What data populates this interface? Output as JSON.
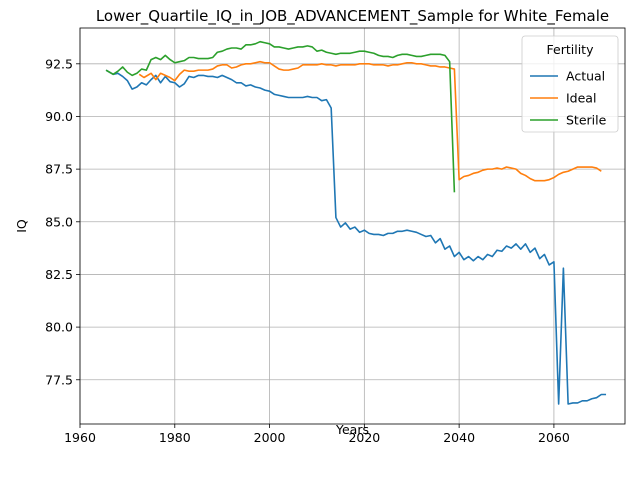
{
  "chart_data": {
    "type": "line",
    "title": "Lower_Quartile_IQ_in_JOB_ADVANCEMENT_Sample for White_Female",
    "xlabel": "Years",
    "ylabel": "IQ",
    "xlim": [
      1960,
      2075
    ],
    "ylim": [
      75.4,
      94.2
    ],
    "xticks": [
      1960,
      1980,
      2000,
      2020,
      2040,
      2060
    ],
    "yticks": [
      77.5,
      80.0,
      82.5,
      85.0,
      87.5,
      90.0,
      92.5
    ],
    "xtick_labels": [
      "1960",
      "1980",
      "2000",
      "2020",
      "2040",
      "2060"
    ],
    "ytick_labels": [
      "77.5",
      "80.0",
      "82.5",
      "85.0",
      "87.5",
      "90.0",
      "92.5"
    ],
    "grid": true,
    "legend": {
      "title": "Fertility",
      "position": "top-right"
    },
    "series": [
      {
        "name": "Actual",
        "color": "#1f77b4",
        "points": [
          [
            1965.5,
            92.2
          ],
          [
            1967,
            92.0
          ],
          [
            1968,
            92.05
          ],
          [
            1969,
            91.9
          ],
          [
            1970,
            91.7
          ],
          [
            1971,
            91.3
          ],
          [
            1972,
            91.4
          ],
          [
            1973,
            91.6
          ],
          [
            1974,
            91.5
          ],
          [
            1975,
            91.75
          ],
          [
            1976,
            91.95
          ],
          [
            1977,
            91.6
          ],
          [
            1978,
            91.9
          ],
          [
            1979,
            91.65
          ],
          [
            1980,
            91.6
          ],
          [
            1981,
            91.4
          ],
          [
            1982,
            91.55
          ],
          [
            1983,
            91.9
          ],
          [
            1984,
            91.85
          ],
          [
            1985,
            91.95
          ],
          [
            1986,
            91.95
          ],
          [
            1987,
            91.9
          ],
          [
            1988,
            91.9
          ],
          [
            1989,
            91.85
          ],
          [
            1990,
            91.95
          ],
          [
            1991,
            91.85
          ],
          [
            1992,
            91.75
          ],
          [
            1993,
            91.6
          ],
          [
            1994,
            91.6
          ],
          [
            1995,
            91.45
          ],
          [
            1996,
            91.5
          ],
          [
            1997,
            91.4
          ],
          [
            1998,
            91.35
          ],
          [
            1999,
            91.25
          ],
          [
            2000,
            91.2
          ],
          [
            2001,
            91.05
          ],
          [
            2002,
            91.0
          ],
          [
            2003,
            90.95
          ],
          [
            2004,
            90.9
          ],
          [
            2005,
            90.9
          ],
          [
            2006,
            90.9
          ],
          [
            2007,
            90.9
          ],
          [
            2008,
            90.95
          ],
          [
            2009,
            90.9
          ],
          [
            2010,
            90.9
          ],
          [
            2011,
            90.75
          ],
          [
            2012,
            90.8
          ],
          [
            2013,
            90.4
          ],
          [
            2014,
            85.2
          ],
          [
            2015,
            84.75
          ],
          [
            2016,
            84.95
          ],
          [
            2017,
            84.65
          ],
          [
            2018,
            84.75
          ],
          [
            2019,
            84.5
          ],
          [
            2020,
            84.6
          ],
          [
            2021,
            84.45
          ],
          [
            2022,
            84.4
          ],
          [
            2023,
            84.4
          ],
          [
            2024,
            84.35
          ],
          [
            2025,
            84.45
          ],
          [
            2026,
            84.45
          ],
          [
            2027,
            84.55
          ],
          [
            2028,
            84.55
          ],
          [
            2029,
            84.6
          ],
          [
            2030,
            84.55
          ],
          [
            2031,
            84.5
          ],
          [
            2032,
            84.4
          ],
          [
            2033,
            84.3
          ],
          [
            2034,
            84.35
          ],
          [
            2035,
            84.0
          ],
          [
            2036,
            84.2
          ],
          [
            2037,
            83.7
          ],
          [
            2038,
            83.85
          ],
          [
            2039,
            83.35
          ],
          [
            2040,
            83.55
          ],
          [
            2041,
            83.2
          ],
          [
            2042,
            83.35
          ],
          [
            2043,
            83.15
          ],
          [
            2044,
            83.35
          ],
          [
            2045,
            83.2
          ],
          [
            2046,
            83.45
          ],
          [
            2047,
            83.35
          ],
          [
            2048,
            83.65
          ],
          [
            2049,
            83.6
          ],
          [
            2050,
            83.85
          ],
          [
            2051,
            83.75
          ],
          [
            2052,
            83.95
          ],
          [
            2053,
            83.7
          ],
          [
            2054,
            83.95
          ],
          [
            2055,
            83.55
          ],
          [
            2056,
            83.75
          ],
          [
            2057,
            83.25
          ],
          [
            2058,
            83.45
          ],
          [
            2059,
            82.95
          ],
          [
            2060,
            83.1
          ],
          [
            2061,
            76.35
          ],
          [
            2062,
            82.8
          ],
          [
            2063,
            76.35
          ],
          [
            2064,
            76.4
          ],
          [
            2065,
            76.4
          ],
          [
            2066,
            76.5
          ],
          [
            2067,
            76.5
          ],
          [
            2068,
            76.6
          ],
          [
            2069,
            76.65
          ],
          [
            2070,
            76.8
          ],
          [
            2071,
            76.8
          ]
        ]
      },
      {
        "name": "Ideal",
        "color": "#ff7f0e",
        "points": [
          [
            1972.5,
            92.0
          ],
          [
            1973.5,
            91.85
          ],
          [
            1975,
            92.05
          ],
          [
            1976,
            91.75
          ],
          [
            1977,
            92.05
          ],
          [
            1978,
            91.95
          ],
          [
            1979,
            91.85
          ],
          [
            1980,
            91.7
          ],
          [
            1981,
            92.0
          ],
          [
            1982,
            92.2
          ],
          [
            1983,
            92.15
          ],
          [
            1984,
            92.15
          ],
          [
            1985,
            92.2
          ],
          [
            1986,
            92.2
          ],
          [
            1987,
            92.2
          ],
          [
            1988,
            92.25
          ],
          [
            1989,
            92.4
          ],
          [
            1990,
            92.45
          ],
          [
            1991,
            92.45
          ],
          [
            1992,
            92.3
          ],
          [
            1993,
            92.35
          ],
          [
            1994,
            92.45
          ],
          [
            1995,
            92.5
          ],
          [
            1996,
            92.5
          ],
          [
            1997,
            92.55
          ],
          [
            1998,
            92.6
          ],
          [
            1999,
            92.55
          ],
          [
            2000,
            92.55
          ],
          [
            2001,
            92.4
          ],
          [
            2002,
            92.25
          ],
          [
            2003,
            92.2
          ],
          [
            2004,
            92.2
          ],
          [
            2005,
            92.25
          ],
          [
            2006,
            92.3
          ],
          [
            2007,
            92.45
          ],
          [
            2008,
            92.45
          ],
          [
            2009,
            92.45
          ],
          [
            2010,
            92.45
          ],
          [
            2011,
            92.5
          ],
          [
            2012,
            92.45
          ],
          [
            2013,
            92.45
          ],
          [
            2014,
            92.4
          ],
          [
            2015,
            92.45
          ],
          [
            2016,
            92.45
          ],
          [
            2017,
            92.45
          ],
          [
            2018,
            92.45
          ],
          [
            2019,
            92.5
          ],
          [
            2020,
            92.5
          ],
          [
            2021,
            92.5
          ],
          [
            2022,
            92.45
          ],
          [
            2023,
            92.45
          ],
          [
            2024,
            92.45
          ],
          [
            2025,
            92.4
          ],
          [
            2026,
            92.45
          ],
          [
            2027,
            92.45
          ],
          [
            2028,
            92.5
          ],
          [
            2029,
            92.55
          ],
          [
            2030,
            92.55
          ],
          [
            2031,
            92.5
          ],
          [
            2032,
            92.5
          ],
          [
            2033,
            92.45
          ],
          [
            2034,
            92.4
          ],
          [
            2035,
            92.4
          ],
          [
            2036,
            92.35
          ],
          [
            2037,
            92.35
          ],
          [
            2038,
            92.3
          ],
          [
            2039,
            92.25
          ],
          [
            2040,
            87.0
          ],
          [
            2041,
            87.15
          ],
          [
            2042,
            87.2
          ],
          [
            2043,
            87.3
          ],
          [
            2044,
            87.35
          ],
          [
            2045,
            87.45
          ],
          [
            2046,
            87.5
          ],
          [
            2047,
            87.5
          ],
          [
            2048,
            87.55
          ],
          [
            2049,
            87.5
          ],
          [
            2050,
            87.6
          ],
          [
            2051,
            87.55
          ],
          [
            2052,
            87.5
          ],
          [
            2053,
            87.3
          ],
          [
            2054,
            87.2
          ],
          [
            2055,
            87.05
          ],
          [
            2056,
            86.95
          ],
          [
            2057,
            86.95
          ],
          [
            2058,
            86.95
          ],
          [
            2059,
            87.0
          ],
          [
            2060,
            87.1
          ],
          [
            2061,
            87.25
          ],
          [
            2062,
            87.35
          ],
          [
            2063,
            87.4
          ],
          [
            2064,
            87.5
          ],
          [
            2065,
            87.6
          ],
          [
            2066,
            87.6
          ],
          [
            2067,
            87.6
          ],
          [
            2068,
            87.6
          ],
          [
            2069,
            87.55
          ],
          [
            2070,
            87.4
          ]
        ]
      },
      {
        "name": "Sterile",
        "color": "#2ca02c",
        "points": [
          [
            1965.5,
            92.2
          ],
          [
            1967,
            92.0
          ],
          [
            1968,
            92.15
          ],
          [
            1969,
            92.35
          ],
          [
            1970,
            92.1
          ],
          [
            1971,
            91.95
          ],
          [
            1972,
            92.05
          ],
          [
            1973,
            92.25
          ],
          [
            1974,
            92.2
          ],
          [
            1975,
            92.7
          ],
          [
            1976,
            92.8
          ],
          [
            1977,
            92.7
          ],
          [
            1978,
            92.9
          ],
          [
            1979,
            92.7
          ],
          [
            1980,
            92.55
          ],
          [
            1981,
            92.6
          ],
          [
            1982,
            92.65
          ],
          [
            1983,
            92.8
          ],
          [
            1984,
            92.8
          ],
          [
            1985,
            92.75
          ],
          [
            1986,
            92.75
          ],
          [
            1987,
            92.75
          ],
          [
            1988,
            92.8
          ],
          [
            1989,
            93.05
          ],
          [
            1990,
            93.1
          ],
          [
            1991,
            93.2
          ],
          [
            1992,
            93.25
          ],
          [
            1993,
            93.25
          ],
          [
            1994,
            93.2
          ],
          [
            1995,
            93.4
          ],
          [
            1996,
            93.4
          ],
          [
            1997,
            93.45
          ],
          [
            1998,
            93.55
          ],
          [
            1999,
            93.5
          ],
          [
            2000,
            93.45
          ],
          [
            2001,
            93.3
          ],
          [
            2002,
            93.3
          ],
          [
            2003,
            93.25
          ],
          [
            2004,
            93.2
          ],
          [
            2005,
            93.25
          ],
          [
            2006,
            93.3
          ],
          [
            2007,
            93.3
          ],
          [
            2008,
            93.35
          ],
          [
            2009,
            93.3
          ],
          [
            2010,
            93.1
          ],
          [
            2011,
            93.15
          ],
          [
            2012,
            93.05
          ],
          [
            2013,
            93.0
          ],
          [
            2014,
            92.95
          ],
          [
            2015,
            93.0
          ],
          [
            2016,
            93.0
          ],
          [
            2017,
            93.0
          ],
          [
            2018,
            93.05
          ],
          [
            2019,
            93.1
          ],
          [
            2020,
            93.1
          ],
          [
            2021,
            93.05
          ],
          [
            2022,
            93.0
          ],
          [
            2023,
            92.9
          ],
          [
            2024,
            92.85
          ],
          [
            2025,
            92.85
          ],
          [
            2026,
            92.8
          ],
          [
            2027,
            92.9
          ],
          [
            2028,
            92.95
          ],
          [
            2029,
            92.95
          ],
          [
            2030,
            92.9
          ],
          [
            2031,
            92.85
          ],
          [
            2032,
            92.85
          ],
          [
            2033,
            92.9
          ],
          [
            2034,
            92.95
          ],
          [
            2035,
            92.95
          ],
          [
            2036,
            92.95
          ],
          [
            2037,
            92.9
          ],
          [
            2038,
            92.6
          ],
          [
            2039,
            86.4
          ]
        ]
      }
    ]
  }
}
